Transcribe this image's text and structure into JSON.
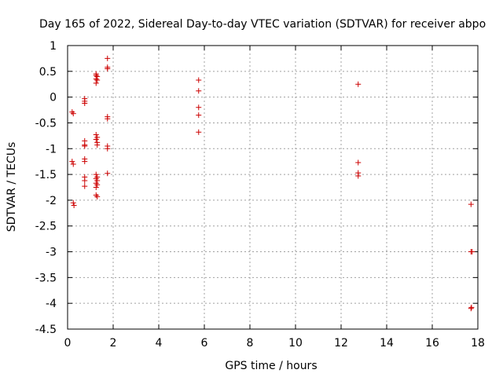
{
  "chart_data": {
    "type": "scatter",
    "title": "Day 165 of 2022, Sidereal Day-to-day VTEC variation (SDTVAR) for receiver abpo",
    "xlabel": "GPS time / hours",
    "ylabel": "SDTVAR / TECUs",
    "xlim": [
      0,
      18
    ],
    "ylim": [
      -4.5,
      1
    ],
    "grid": true,
    "legend": "none",
    "marker": "+",
    "color": "#cc0000",
    "x_ticks": [
      0,
      2,
      4,
      6,
      8,
      10,
      12,
      14,
      16,
      18
    ],
    "x_tick_labels": [
      "0",
      "2",
      "4",
      "6",
      "8",
      "10",
      "12",
      "14",
      "16",
      "18"
    ],
    "y_ticks": [
      1,
      0.5,
      0,
      -0.5,
      -1,
      -1.5,
      -2,
      -2.5,
      -3,
      -3.5,
      -4,
      -4.5
    ],
    "y_tick_labels": [
      "1",
      "0.5",
      "0",
      "-0.5",
      "-1",
      "-1.5",
      "-2",
      "-2.5",
      "-3",
      "-3.5",
      "-4",
      "-4.5"
    ],
    "series": [
      {
        "name": "SDTVAR",
        "points": [
          [
            0.2,
            -0.29
          ],
          [
            0.25,
            -0.32
          ],
          [
            0.2,
            -1.25
          ],
          [
            0.25,
            -1.3
          ],
          [
            0.25,
            -2.05
          ],
          [
            0.28,
            -2.1
          ],
          [
            0.75,
            -0.03
          ],
          [
            0.75,
            -0.08
          ],
          [
            0.75,
            -0.12
          ],
          [
            0.75,
            -0.85
          ],
          [
            0.75,
            -0.93
          ],
          [
            0.75,
            -0.95
          ],
          [
            0.75,
            -1.2
          ],
          [
            0.75,
            -1.25
          ],
          [
            0.75,
            -1.55
          ],
          [
            0.75,
            -1.62
          ],
          [
            0.75,
            -1.73
          ],
          [
            1.25,
            0.45
          ],
          [
            1.25,
            0.42
          ],
          [
            1.3,
            0.4
          ],
          [
            1.25,
            0.35
          ],
          [
            1.3,
            0.33
          ],
          [
            1.25,
            0.27
          ],
          [
            1.25,
            -0.73
          ],
          [
            1.3,
            -0.78
          ],
          [
            1.25,
            -0.82
          ],
          [
            1.3,
            -0.88
          ],
          [
            1.3,
            -0.93
          ],
          [
            1.25,
            -1.5
          ],
          [
            1.3,
            -1.55
          ],
          [
            1.25,
            -1.58
          ],
          [
            1.3,
            -1.62
          ],
          [
            1.25,
            -1.67
          ],
          [
            1.3,
            -1.7
          ],
          [
            1.25,
            -1.75
          ],
          [
            1.25,
            -1.9
          ],
          [
            1.3,
            -1.93
          ],
          [
            1.75,
            0.75
          ],
          [
            1.75,
            0.58
          ],
          [
            1.75,
            0.55
          ],
          [
            1.75,
            -0.38
          ],
          [
            1.75,
            -0.42
          ],
          [
            1.75,
            -0.95
          ],
          [
            1.75,
            -1.0
          ],
          [
            1.75,
            -1.48
          ],
          [
            5.75,
            0.33
          ],
          [
            5.75,
            0.12
          ],
          [
            5.75,
            -0.2
          ],
          [
            5.75,
            -0.35
          ],
          [
            5.75,
            -0.68
          ],
          [
            12.75,
            0.25
          ],
          [
            12.75,
            -1.27
          ],
          [
            12.75,
            -1.47
          ],
          [
            12.75,
            -1.53
          ],
          [
            17.7,
            -2.08
          ],
          [
            17.7,
            -3.0
          ],
          [
            17.75,
            -3.0
          ],
          [
            17.72,
            -4.08
          ],
          [
            17.7,
            -4.1
          ]
        ]
      }
    ]
  }
}
